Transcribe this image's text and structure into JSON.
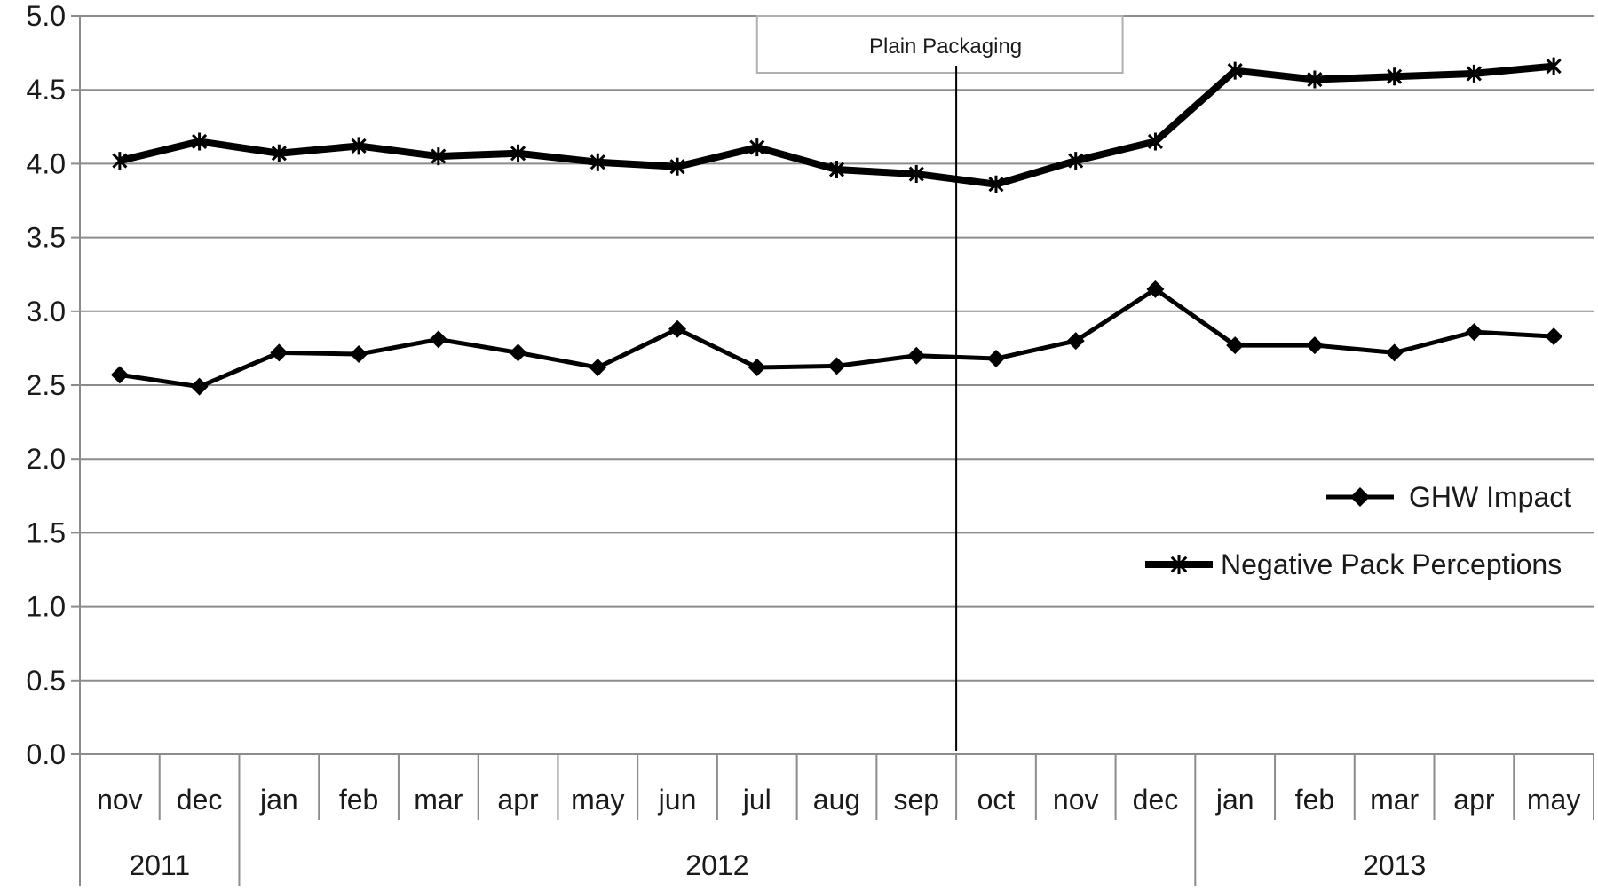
{
  "chart_data": {
    "type": "line",
    "categories": [
      "nov",
      "dec",
      "jan",
      "feb",
      "mar",
      "apr",
      "may",
      "jun",
      "jul",
      "aug",
      "sep",
      "oct",
      "nov",
      "dec",
      "jan",
      "feb",
      "mar",
      "apr",
      "may"
    ],
    "years": [
      {
        "label": "2011",
        "start_index": 0,
        "end_index": 1
      },
      {
        "label": "2012",
        "start_index": 2,
        "end_index": 13
      },
      {
        "label": "2013",
        "start_index": 14,
        "end_index": 18
      }
    ],
    "series": [
      {
        "name": "GHW Impact",
        "marker": "diamond",
        "values": [
          2.57,
          2.49,
          2.72,
          2.71,
          2.81,
          2.72,
          2.62,
          2.88,
          2.62,
          2.63,
          2.7,
          2.68,
          2.8,
          3.15,
          2.77,
          2.77,
          2.72,
          2.86,
          2.83
        ]
      },
      {
        "name": "Negative Pack Perceptions",
        "marker": "asterisk",
        "values": [
          4.02,
          4.15,
          4.07,
          4.12,
          4.05,
          4.07,
          4.01,
          3.98,
          4.11,
          3.96,
          3.93,
          3.86,
          4.02,
          4.15,
          4.63,
          4.57,
          4.59,
          4.61,
          4.66
        ]
      }
    ],
    "yticks": [
      "0.0",
      "0.5",
      "1.0",
      "1.5",
      "2.0",
      "2.5",
      "3.0",
      "3.5",
      "4.0",
      "4.5",
      "5.0"
    ],
    "ylim": [
      0,
      5
    ],
    "grid": true,
    "legend_position": "right",
    "annotation": {
      "label": "Plain Packaging",
      "between_indices": [
        10,
        11
      ]
    },
    "colors": {
      "series": "#000000",
      "grid": "#8c8c8c",
      "axis": "#8c8c8c",
      "annotation_border": "#b0b0b0",
      "text": "#1a1a1a"
    }
  }
}
